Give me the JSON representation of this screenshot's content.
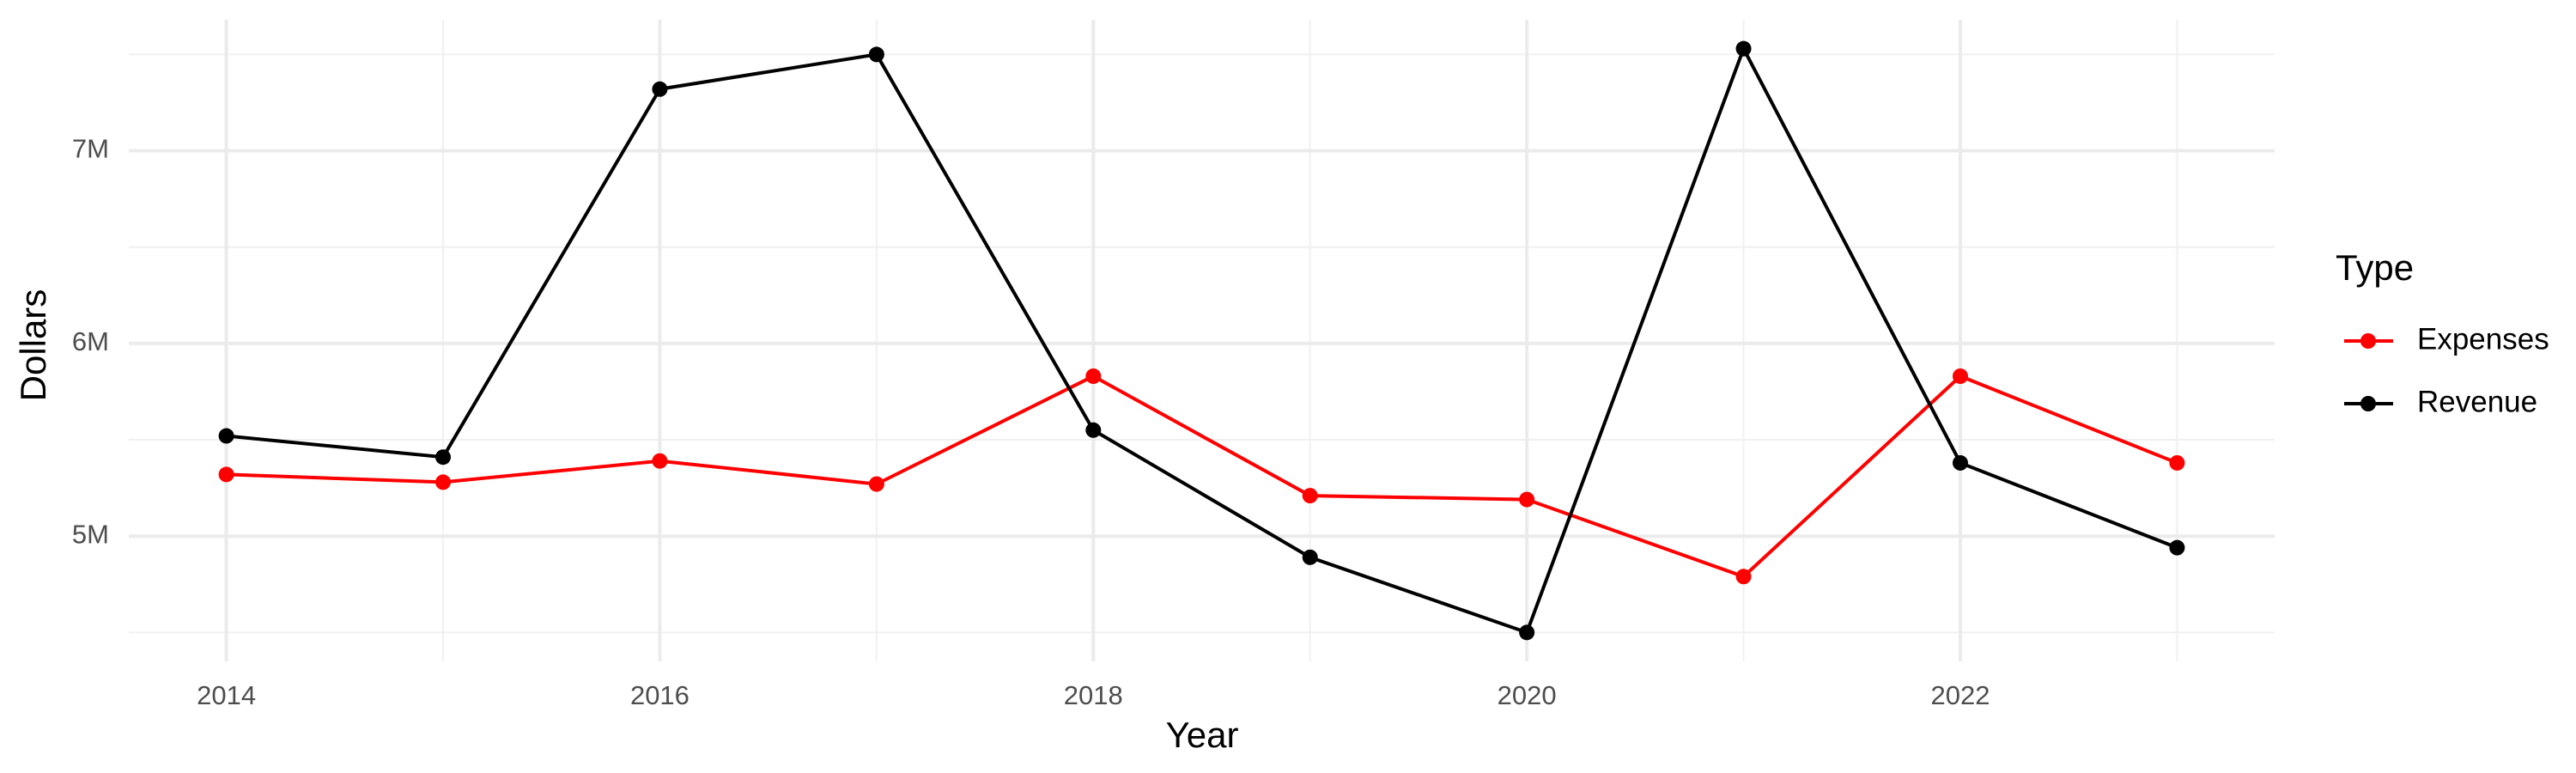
{
  "chart_data": {
    "type": "line",
    "x_label": "Year",
    "y_label": "Dollars",
    "legend_title": "Type",
    "x": [
      2014,
      2015,
      2016,
      2017,
      2018,
      2019,
      2020,
      2021,
      2022,
      2023
    ],
    "series": [
      {
        "name": "Expenses",
        "color": "#ff0000",
        "values": [
          5320000,
          5280000,
          5390000,
          5270000,
          5830000,
          5210000,
          5190000,
          4790000,
          5830000,
          5380000
        ]
      },
      {
        "name": "Revenue",
        "color": "#000000",
        "values": [
          5520000,
          5410000,
          7320000,
          7500000,
          5550000,
          4890000,
          4500000,
          7530000,
          5380000,
          4940000
        ]
      }
    ],
    "xlim": [
      2013.55,
      2023.45
    ],
    "xticks": [
      2014,
      2016,
      2018,
      2020,
      2022
    ],
    "ylim": [
      4350000,
      7680000
    ],
    "yticks": [
      {
        "value": 5000000,
        "label": "5M"
      },
      {
        "value": 6000000,
        "label": "6M"
      },
      {
        "value": 7000000,
        "label": "7M"
      }
    ],
    "grid": true,
    "legend": "right"
  }
}
